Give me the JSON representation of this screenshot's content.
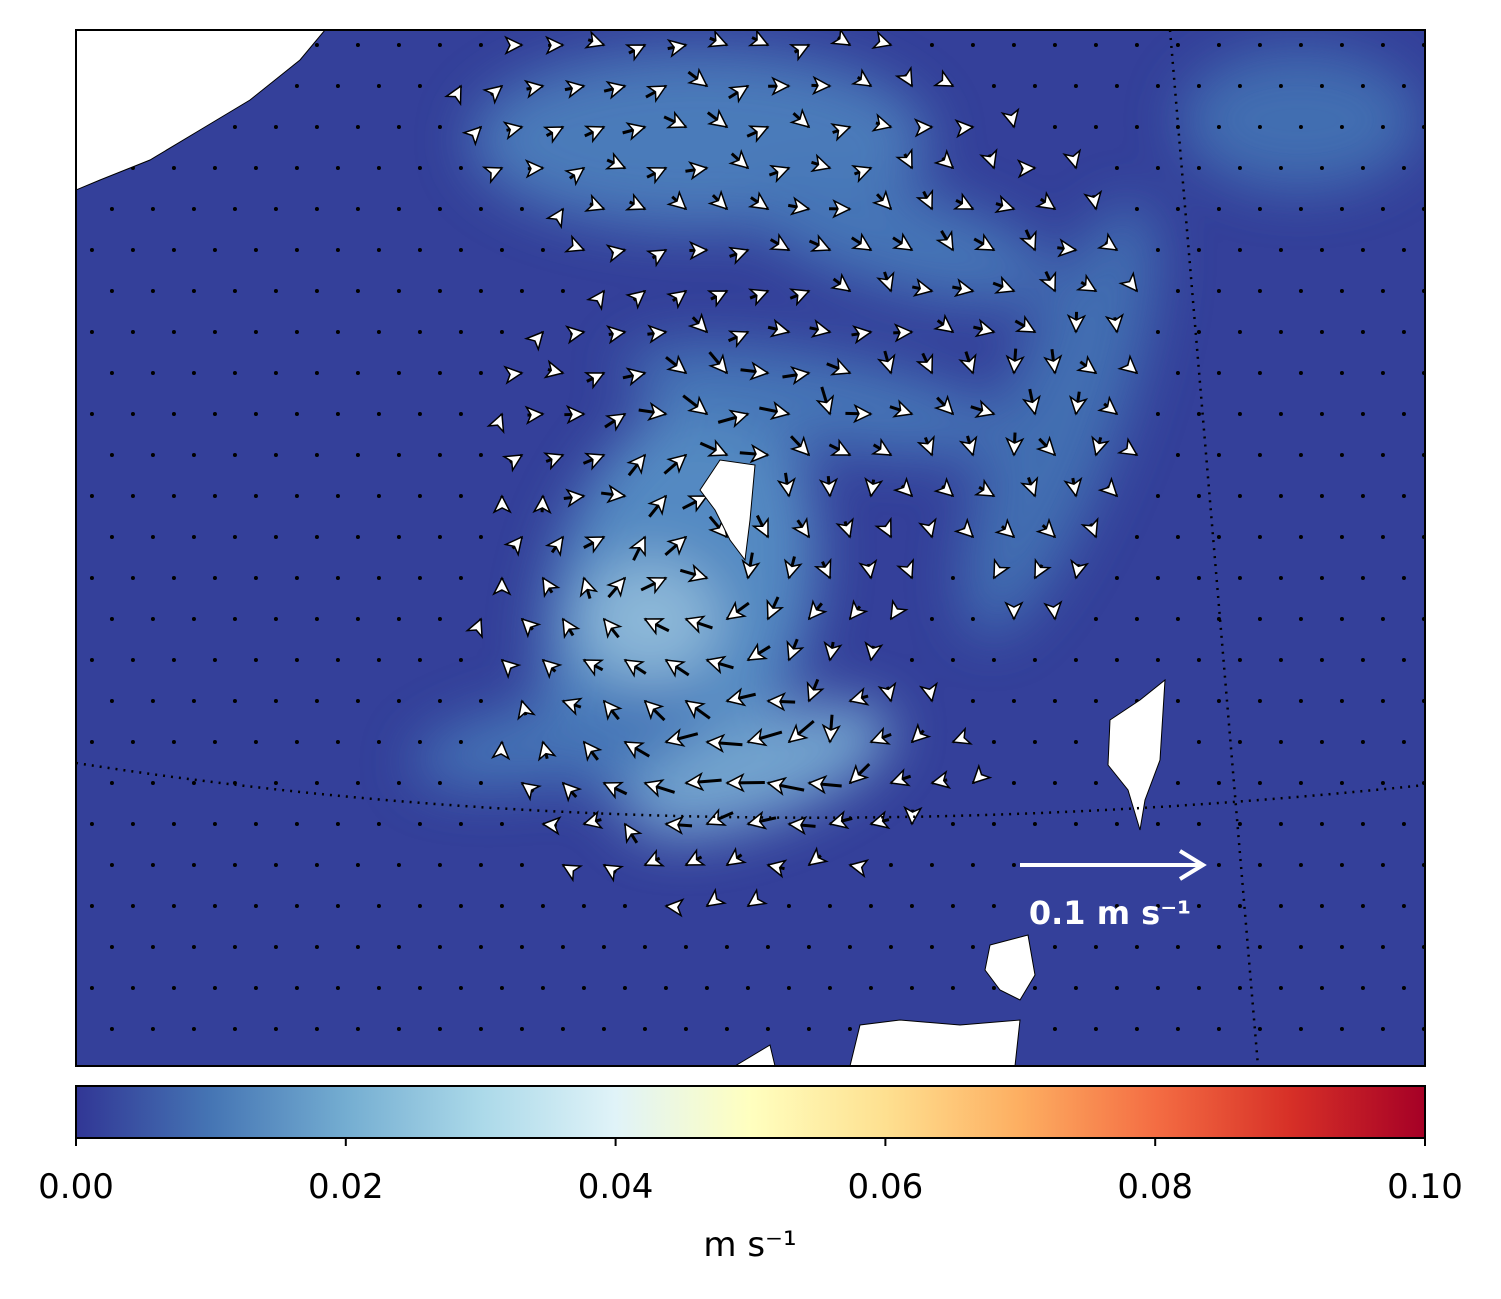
{
  "colorbar": {
    "label": "m s⁻¹",
    "clim": [
      0,
      0.1
    ],
    "ticks": [
      {
        "value": 0,
        "label": "0.00"
      },
      0.02,
      0.04,
      0.06,
      0.08,
      {
        "value": 0.1,
        "label": "0.10"
      }
    ],
    "colormap": [
      "#313695",
      "#4575b4",
      "#74add1",
      "#abd9e9",
      "#e0f3f8",
      "#ffffbf",
      "#fee090",
      "#fdae61",
      "#f46d43",
      "#d73027",
      "#a50026"
    ]
  },
  "quiver_key": {
    "value": 0.1,
    "label": "0.1 m s⁻¹"
  }
}
